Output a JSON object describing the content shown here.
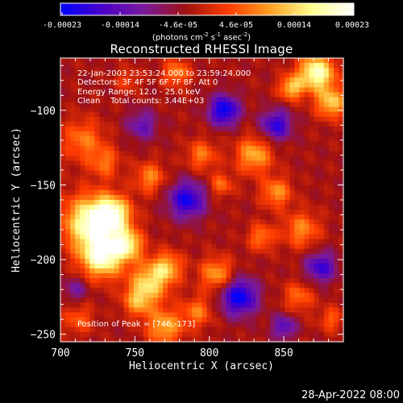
{
  "colorbar": {
    "ticks": [
      "-0.00023",
      "-0.00014",
      "-4.6e-05",
      "4.6e-05",
      "0.00014",
      "0.00023"
    ],
    "unit_parts": [
      "(photons cm",
      "-2",
      " s",
      "-1",
      " asec",
      "-2",
      ")"
    ],
    "colors": [
      "#0000ff",
      "#4b00c8",
      "#7a1a9a",
      "#a01010",
      "#ff3c00",
      "#ffa020",
      "#ffff90",
      "#ffffff"
    ]
  },
  "chart_data": {
    "type": "heatmap",
    "title": "Reconstructed RHESSI Image",
    "xlabel": "Heliocentric X (arcsec)",
    "ylabel": "Heliocentric Y (arcsec)",
    "xlim": [
      700,
      890
    ],
    "ylim": [
      -255,
      -65
    ],
    "xticks": [
      700,
      750,
      800,
      850
    ],
    "yticks": [
      -100,
      -150,
      -200,
      -250
    ],
    "zlim": [
      -0.00023,
      0.00023
    ],
    "peak": [
      746,
      -173
    ],
    "blobs": [
      [
        715,
        -120,
        14,
        0.0001
      ],
      [
        730,
        -135,
        10,
        9e-05
      ],
      [
        720,
        -175,
        18,
        0.00022
      ],
      [
        735,
        -170,
        12,
        0.0002
      ],
      [
        728,
        -198,
        14,
        0.00023
      ],
      [
        745,
        -190,
        10,
        0.00018
      ],
      [
        760,
        -215,
        13,
        0.00016
      ],
      [
        772,
        -205,
        10,
        0.00013
      ],
      [
        770,
        -245,
        12,
        0.00014
      ],
      [
        752,
        -228,
        10,
        0.00012
      ],
      [
        760,
        -145,
        10,
        0.00011
      ],
      [
        795,
        -130,
        10,
        0.0001
      ],
      [
        808,
        -150,
        8,
        9e-05
      ],
      [
        830,
        -130,
        12,
        0.00014
      ],
      [
        845,
        -155,
        10,
        0.00012
      ],
      [
        862,
        -180,
        12,
        0.00011
      ],
      [
        835,
        -185,
        9,
        0.0001
      ],
      [
        805,
        -210,
        11,
        0.00013
      ],
      [
        792,
        -235,
        10,
        0.0001
      ],
      [
        882,
        -95,
        10,
        0.00016
      ],
      [
        872,
        -75,
        12,
        0.00023
      ],
      [
        855,
        -85,
        8,
        0.00015
      ],
      [
        778,
        -75,
        9,
        0.00011
      ],
      [
        745,
        -80,
        8,
        6e-05
      ],
      [
        712,
        -240,
        10,
        8e-05
      ],
      [
        860,
        -225,
        10,
        9e-05
      ],
      [
        882,
        -240,
        8,
        8e-05
      ],
      [
        810,
        -100,
        10,
        -0.0002
      ],
      [
        785,
        -160,
        12,
        -0.00018
      ],
      [
        845,
        -110,
        10,
        -0.00016
      ],
      [
        820,
        -225,
        12,
        -0.0002
      ],
      [
        875,
        -205,
        10,
        -0.00015
      ],
      [
        755,
        -110,
        10,
        -0.0001
      ],
      [
        710,
        -220,
        8,
        -8e-05
      ],
      [
        850,
        -245,
        8,
        -0.00012
      ]
    ]
  },
  "info": {
    "time_range": "22-Jan-2003 23:53:24.000 to 23:59:24.000",
    "detectors": "Detectors: 3F 4F 5F 6F 7F 8F, Att 0",
    "energy": "Energy Range: 12.0 - 25.0 keV",
    "algorithm": "Clean",
    "counts": "Total counts: 3.44E+03",
    "peak_label": "Position of Peak = [746,-173]"
  },
  "timestamp": "28-Apr-2022 08:00"
}
